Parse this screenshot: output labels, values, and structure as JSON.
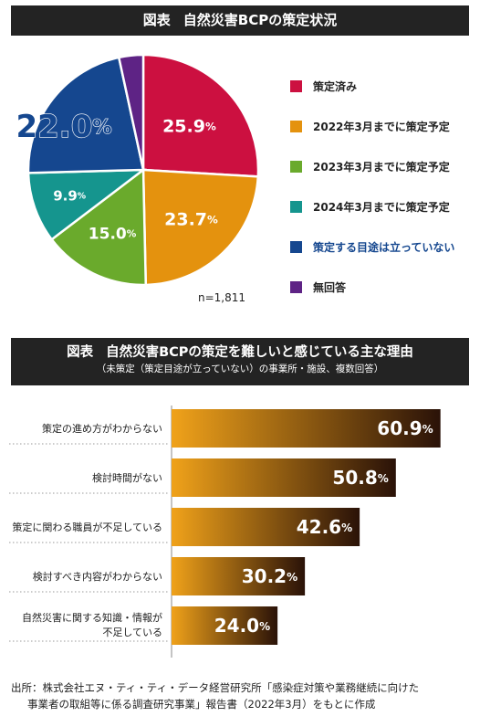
{
  "titles": {
    "chart1_prefix": "図表",
    "chart1_title": "自然災害BCPの策定状況",
    "chart2_prefix": "図表",
    "chart2_title": "自然災害BCPの策定を難しいと感じている主な理由",
    "chart2_subtitle": "（未策定（策定目途が立っていない）の事業所・施設、複数回答）"
  },
  "note_n": "n=1,811",
  "source": {
    "line1": "出所：株式会社エヌ・ティ・ティ・データ経営研究所「感染症対策や業務継続に向けた",
    "line2": "事業者の取組等に係る調査研究事業」報告書（2022年3月）をもとに作成"
  },
  "chart_data": [
    {
      "type": "pie",
      "title": "自然災害BCPの策定状況",
      "categories": [
        "策定済み",
        "2022年3月までに策定予定",
        "2023年3月までに策定予定",
        "2024年3月までに策定予定",
        "策定する目途は立っていない",
        "無回答"
      ],
      "values": [
        25.9,
        23.7,
        15.0,
        9.9,
        22.0,
        3.4
      ],
      "value_labels": [
        {
          "num": "25.9",
          "unit": "%"
        },
        {
          "num": "23.7",
          "unit": "%"
        },
        {
          "num": "15.0",
          "unit": "%"
        },
        {
          "num": "9.9",
          "unit": "%"
        },
        {
          "num": "22.0",
          "unit": "%"
        },
        {
          "num": "3.4",
          "unit": "%"
        }
      ],
      "colors": [
        "#cc1040",
        "#e4920e",
        "#6aaa2c",
        "#15958e",
        "#15478f",
        "#5e2385"
      ],
      "legend_label_colors": [
        "#222222",
        "#222222",
        "#222222",
        "#222222",
        "#15478f",
        "#222222"
      ],
      "note": "n=1,811",
      "legend_position": "right"
    },
    {
      "type": "bar",
      "orientation": "horizontal",
      "title": "自然災害BCPの策定を難しいと感じている主な理由",
      "subtitle": "（未策定（策定目途が立っていない）の事業所・施設、複数回答）",
      "categories": [
        [
          "策定の進め方がわからない"
        ],
        [
          "検討時間がない"
        ],
        [
          "策定に関わる職員が不足している"
        ],
        [
          "検討すべき内容がわからない"
        ],
        [
          "自然災害に関する知識・情報が",
          "不足している"
        ]
      ],
      "values": [
        60.9,
        50.8,
        42.6,
        30.2,
        24.0
      ],
      "value_labels": [
        {
          "num": "60.9",
          "unit": "%"
        },
        {
          "num": "50.8",
          "unit": "%"
        },
        {
          "num": "42.6",
          "unit": "%"
        },
        {
          "num": "30.2",
          "unit": "%"
        },
        {
          "num": "24.0",
          "unit": "%"
        }
      ],
      "gradient_colors": [
        "#f0a21a",
        "#2a1208"
      ],
      "xlim": [
        0,
        62
      ],
      "grid": false
    }
  ]
}
